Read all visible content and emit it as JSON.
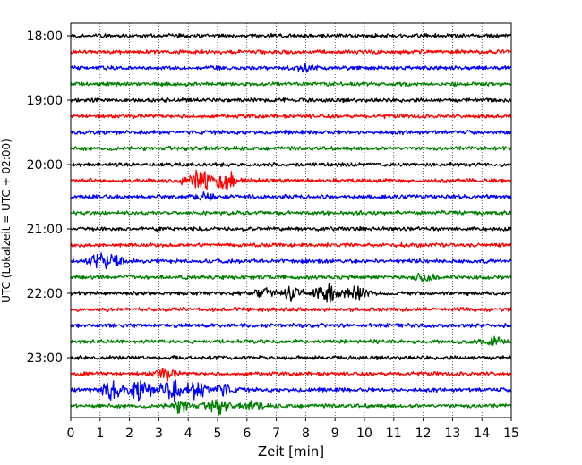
{
  "chart_data": {
    "type": "line",
    "title": "",
    "xlabel": "Zeit  [min]",
    "ylabel": "UTC (Lokalzeit = UTC + 02:00)",
    "xlim": [
      0,
      15
    ],
    "x_ticks": [
      "0",
      "1",
      "2",
      "3",
      "4",
      "5",
      "6",
      "7",
      "8",
      "9",
      "10",
      "11",
      "12",
      "13",
      "14",
      "15"
    ],
    "y_ticks": [
      {
        "label": "18:00",
        "trace": 0
      },
      {
        "label": "19:00",
        "trace": 4
      },
      {
        "label": "20:00",
        "trace": 8
      },
      {
        "label": "21:00",
        "trace": 12
      },
      {
        "label": "22:00",
        "trace": 16
      },
      {
        "label": "23:00",
        "trace": 20
      }
    ],
    "grid": "vertical dotted at each minute",
    "trace_colors": [
      "#000000",
      "#ff0000",
      "#0000ff",
      "#008000"
    ],
    "traces": [
      {
        "start": "18:00",
        "bursts": []
      },
      {
        "start": "18:15",
        "bursts": []
      },
      {
        "start": "18:30",
        "bursts": [
          {
            "t": 8.0,
            "amp": 0.25
          }
        ]
      },
      {
        "start": "18:45",
        "bursts": []
      },
      {
        "start": "19:00",
        "bursts": []
      },
      {
        "start": "19:15",
        "bursts": []
      },
      {
        "start": "19:30",
        "bursts": []
      },
      {
        "start": "19:45",
        "bursts": []
      },
      {
        "start": "20:00",
        "bursts": []
      },
      {
        "start": "20:15",
        "bursts": [
          {
            "t": 4.5,
            "amp": 0.9
          },
          {
            "t": 5.3,
            "amp": 0.7
          },
          {
            "t": 3.9,
            "amp": 0.25
          }
        ]
      },
      {
        "start": "20:30",
        "bursts": [
          {
            "t": 4.6,
            "amp": 0.3
          }
        ]
      },
      {
        "start": "20:45",
        "bursts": []
      },
      {
        "start": "21:00",
        "bursts": []
      },
      {
        "start": "21:15",
        "bursts": []
      },
      {
        "start": "21:30",
        "bursts": [
          {
            "t": 1.0,
            "amp": 0.6
          },
          {
            "t": 1.5,
            "amp": 0.3
          }
        ]
      },
      {
        "start": "21:45",
        "bursts": [
          {
            "t": 12.0,
            "amp": 0.5
          }
        ]
      },
      {
        "start": "22:00",
        "bursts": [
          {
            "t": 6.6,
            "amp": 0.5
          },
          {
            "t": 7.6,
            "amp": 0.6
          },
          {
            "t": 8.7,
            "amp": 0.9
          },
          {
            "t": 9.7,
            "amp": 0.55
          }
        ]
      },
      {
        "start": "22:15",
        "bursts": []
      },
      {
        "start": "22:30",
        "bursts": []
      },
      {
        "start": "22:45",
        "bursts": [
          {
            "t": 14.4,
            "amp": 0.3
          }
        ]
      },
      {
        "start": "23:00",
        "bursts": []
      },
      {
        "start": "23:15",
        "bursts": [
          {
            "t": 3.2,
            "amp": 0.5
          }
        ]
      },
      {
        "start": "23:30",
        "bursts": [
          {
            "t": 1.4,
            "amp": 0.8
          },
          {
            "t": 2.4,
            "amp": 0.9
          },
          {
            "t": 3.4,
            "amp": 1.0
          },
          {
            "t": 4.3,
            "amp": 0.8
          },
          {
            "t": 5.2,
            "amp": 0.5
          }
        ]
      },
      {
        "start": "23:45",
        "bursts": [
          {
            "t": 3.8,
            "amp": 0.55
          },
          {
            "t": 5.0,
            "amp": 0.6
          },
          {
            "t": 6.2,
            "amp": 0.3
          }
        ]
      }
    ]
  }
}
